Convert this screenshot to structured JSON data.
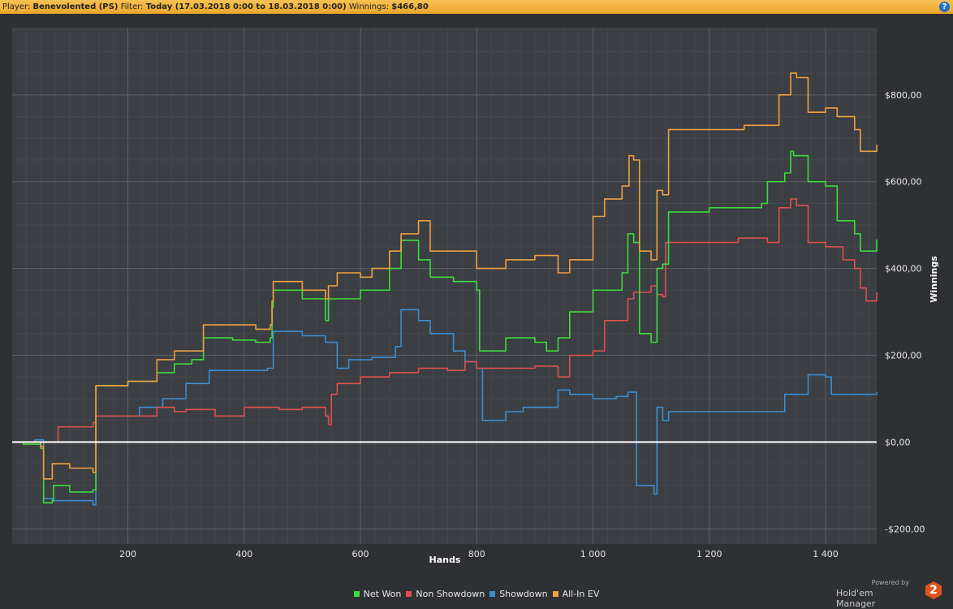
{
  "header": {
    "player_label": "Player:",
    "player": "Benevolented (PS)",
    "filter_label": "Filter:",
    "filter": "Today (17.03.2018 0:00 to 18.03.2018 0:00)",
    "winnings_label": "Winnings:",
    "winnings": "$466,80",
    "help": "?"
  },
  "brand": {
    "powered": "Powered by",
    "name": "Hold'em Manager",
    "logo": "2"
  },
  "chart_data": {
    "type": "line",
    "xlabel": "Hands",
    "ylabel": "Winnings",
    "xlim": [
      1,
      1488
    ],
    "ylim": [
      -235,
      955
    ],
    "x_ticks": [
      200,
      400,
      600,
      800,
      1000,
      1200,
      1400
    ],
    "x_tick_labels": [
      "200",
      "400",
      "600",
      "800",
      "1 000",
      "1 200",
      "1 400"
    ],
    "y_ticks": [
      -200,
      0,
      200,
      400,
      600,
      800
    ],
    "y_tick_labels": [
      "-$200,00",
      "$0,00",
      "$200,00",
      "$400,00",
      "$600,00",
      "$800,00"
    ],
    "grid": true,
    "legend_position": "bottom",
    "series": [
      {
        "name": "Net Won",
        "color": "#3ddc3d",
        "points": [
          [
            1,
            0
          ],
          [
            20,
            -5
          ],
          [
            50,
            -15
          ],
          [
            55,
            -140
          ],
          [
            70,
            -135
          ],
          [
            72,
            -100
          ],
          [
            100,
            -115
          ],
          [
            140,
            -110
          ],
          [
            145,
            130
          ],
          [
            200,
            140
          ],
          [
            250,
            160
          ],
          [
            280,
            180
          ],
          [
            310,
            190
          ],
          [
            330,
            240
          ],
          [
            380,
            235
          ],
          [
            420,
            230
          ],
          [
            445,
            240
          ],
          [
            448,
            310
          ],
          [
            450,
            350
          ],
          [
            500,
            330
          ],
          [
            540,
            280
          ],
          [
            545,
            330
          ],
          [
            600,
            350
          ],
          [
            650,
            400
          ],
          [
            670,
            465
          ],
          [
            700,
            420
          ],
          [
            720,
            380
          ],
          [
            760,
            370
          ],
          [
            800,
            350
          ],
          [
            805,
            210
          ],
          [
            850,
            240
          ],
          [
            900,
            230
          ],
          [
            920,
            210
          ],
          [
            940,
            240
          ],
          [
            960,
            300
          ],
          [
            1000,
            350
          ],
          [
            1050,
            390
          ],
          [
            1060,
            480
          ],
          [
            1070,
            460
          ],
          [
            1080,
            250
          ],
          [
            1100,
            230
          ],
          [
            1110,
            400
          ],
          [
            1120,
            410
          ],
          [
            1130,
            530
          ],
          [
            1200,
            540
          ],
          [
            1240,
            540
          ],
          [
            1290,
            550
          ],
          [
            1300,
            600
          ],
          [
            1330,
            620
          ],
          [
            1340,
            670
          ],
          [
            1345,
            660
          ],
          [
            1370,
            600
          ],
          [
            1400,
            590
          ],
          [
            1420,
            510
          ],
          [
            1450,
            480
          ],
          [
            1460,
            440
          ],
          [
            1488,
            467
          ]
        ]
      },
      {
        "name": "Non Showdown",
        "color": "#e05050",
        "points": [
          [
            1,
            0
          ],
          [
            60,
            0
          ],
          [
            80,
            35
          ],
          [
            140,
            45
          ],
          [
            145,
            60
          ],
          [
            200,
            60
          ],
          [
            250,
            80
          ],
          [
            280,
            70
          ],
          [
            300,
            75
          ],
          [
            350,
            60
          ],
          [
            400,
            80
          ],
          [
            440,
            80
          ],
          [
            460,
            75
          ],
          [
            500,
            80
          ],
          [
            540,
            60
          ],
          [
            545,
            40
          ],
          [
            550,
            110
          ],
          [
            560,
            135
          ],
          [
            600,
            150
          ],
          [
            650,
            160
          ],
          [
            700,
            170
          ],
          [
            750,
            165
          ],
          [
            780,
            185
          ],
          [
            800,
            170
          ],
          [
            850,
            170
          ],
          [
            900,
            175
          ],
          [
            940,
            150
          ],
          [
            960,
            200
          ],
          [
            1000,
            210
          ],
          [
            1020,
            280
          ],
          [
            1060,
            330
          ],
          [
            1070,
            345
          ],
          [
            1100,
            360
          ],
          [
            1110,
            340
          ],
          [
            1120,
            335
          ],
          [
            1125,
            460
          ],
          [
            1200,
            460
          ],
          [
            1250,
            470
          ],
          [
            1300,
            460
          ],
          [
            1320,
            540
          ],
          [
            1340,
            560
          ],
          [
            1350,
            545
          ],
          [
            1370,
            460
          ],
          [
            1400,
            450
          ],
          [
            1430,
            420
          ],
          [
            1450,
            400
          ],
          [
            1460,
            355
          ],
          [
            1470,
            325
          ],
          [
            1488,
            345
          ]
        ]
      },
      {
        "name": "Showdown",
        "color": "#3a8fd4",
        "points": [
          [
            1,
            0
          ],
          [
            40,
            5
          ],
          [
            55,
            -130
          ],
          [
            70,
            -135
          ],
          [
            120,
            -135
          ],
          [
            140,
            -145
          ],
          [
            145,
            60
          ],
          [
            190,
            60
          ],
          [
            220,
            80
          ],
          [
            260,
            100
          ],
          [
            300,
            135
          ],
          [
            340,
            165
          ],
          [
            380,
            165
          ],
          [
            420,
            165
          ],
          [
            440,
            170
          ],
          [
            450,
            255
          ],
          [
            500,
            245
          ],
          [
            540,
            230
          ],
          [
            560,
            170
          ],
          [
            580,
            190
          ],
          [
            620,
            195
          ],
          [
            660,
            220
          ],
          [
            670,
            305
          ],
          [
            700,
            280
          ],
          [
            720,
            250
          ],
          [
            760,
            210
          ],
          [
            780,
            185
          ],
          [
            800,
            170
          ],
          [
            810,
            50
          ],
          [
            850,
            70
          ],
          [
            880,
            80
          ],
          [
            920,
            80
          ],
          [
            940,
            120
          ],
          [
            960,
            110
          ],
          [
            1000,
            100
          ],
          [
            1040,
            105
          ],
          [
            1060,
            115
          ],
          [
            1075,
            -100
          ],
          [
            1100,
            -100
          ],
          [
            1105,
            -120
          ],
          [
            1110,
            80
          ],
          [
            1120,
            50
          ],
          [
            1130,
            70
          ],
          [
            1200,
            70
          ],
          [
            1250,
            70
          ],
          [
            1300,
            70
          ],
          [
            1330,
            110
          ],
          [
            1370,
            155
          ],
          [
            1400,
            150
          ],
          [
            1410,
            110
          ],
          [
            1450,
            110
          ],
          [
            1488,
            115
          ]
        ]
      },
      {
        "name": "All-In EV",
        "color": "#f0a040",
        "points": [
          [
            1,
            0
          ],
          [
            50,
            -10
          ],
          [
            55,
            -85
          ],
          [
            70,
            -50
          ],
          [
            100,
            -60
          ],
          [
            140,
            -70
          ],
          [
            145,
            130
          ],
          [
            200,
            140
          ],
          [
            250,
            190
          ],
          [
            280,
            210
          ],
          [
            330,
            270
          ],
          [
            380,
            270
          ],
          [
            420,
            260
          ],
          [
            445,
            270
          ],
          [
            448,
            325
          ],
          [
            450,
            370
          ],
          [
            500,
            350
          ],
          [
            540,
            330
          ],
          [
            545,
            360
          ],
          [
            560,
            390
          ],
          [
            600,
            380
          ],
          [
            620,
            400
          ],
          [
            650,
            440
          ],
          [
            670,
            480
          ],
          [
            700,
            510
          ],
          [
            720,
            440
          ],
          [
            760,
            440
          ],
          [
            800,
            400
          ],
          [
            850,
            420
          ],
          [
            900,
            430
          ],
          [
            940,
            390
          ],
          [
            960,
            420
          ],
          [
            1000,
            520
          ],
          [
            1020,
            560
          ],
          [
            1050,
            590
          ],
          [
            1062,
            660
          ],
          [
            1070,
            650
          ],
          [
            1080,
            440
          ],
          [
            1100,
            420
          ],
          [
            1110,
            580
          ],
          [
            1120,
            570
          ],
          [
            1130,
            720
          ],
          [
            1200,
            720
          ],
          [
            1260,
            730
          ],
          [
            1300,
            730
          ],
          [
            1320,
            800
          ],
          [
            1340,
            850
          ],
          [
            1350,
            840
          ],
          [
            1370,
            760
          ],
          [
            1400,
            770
          ],
          [
            1420,
            750
          ],
          [
            1450,
            720
          ],
          [
            1460,
            670
          ],
          [
            1488,
            685
          ]
        ]
      }
    ]
  }
}
